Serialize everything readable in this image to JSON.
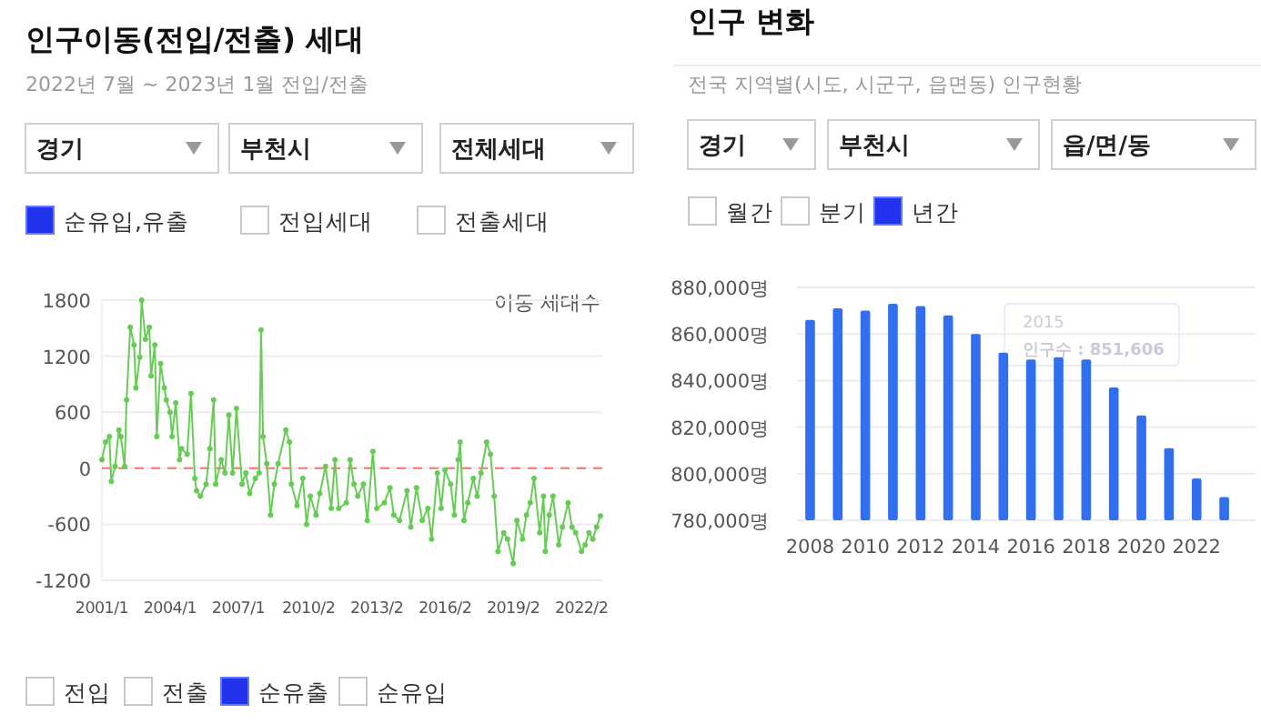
{
  "chart_data": [
    {
      "type": "line",
      "title": "인구이동(전입/전출) 세대",
      "subtitle": "2022년 7월 ~ 2023년 1월 전입/전출",
      "annotations": [
        "경기",
        "부천시",
        "전체세대",
        "순유입,유출",
        "전입세대",
        "전출세대",
        "이동 세대수",
        "전입",
        "전출",
        "순유출",
        "순유입"
      ],
      "x": [
        "2001-01",
        "2001-03",
        "2001-05",
        "2001-06",
        "2001-08",
        "2001-10",
        "2001-11",
        "2002-01",
        "2002-02",
        "2002-04",
        "2002-06",
        "2002-07",
        "2002-09",
        "2002-10",
        "2002-12",
        "2003-02",
        "2003-03",
        "2003-05",
        "2003-06",
        "2003-08",
        "2003-10",
        "2003-11",
        "2004-01",
        "2004-02",
        "2004-04",
        "2004-06",
        "2004-07",
        "2004-10",
        "2004-12",
        "2005-02",
        "2005-03",
        "2005-05",
        "2005-08",
        "2005-10",
        "2005-12",
        "2006-01",
        "2006-04",
        "2006-06",
        "2006-08",
        "2006-10",
        "2006-12",
        "2007-03",
        "2007-05",
        "2007-07",
        "2007-10",
        "2007-12",
        "2008-01",
        "2008-02",
        "2008-04",
        "2008-06",
        "2008-08",
        "2008-10",
        "2009-02",
        "2009-04",
        "2009-05",
        "2009-08",
        "2009-11",
        "2010-01",
        "2010-03",
        "2010-06",
        "2010-08",
        "2010-11",
        "2011-02",
        "2011-04",
        "2011-06",
        "2011-10",
        "2011-12",
        "2012-02",
        "2012-04",
        "2012-07",
        "2012-09",
        "2012-12",
        "2013-02",
        "2013-06",
        "2013-09",
        "2013-11",
        "2014-02",
        "2014-06",
        "2014-08",
        "2014-11",
        "2015-02",
        "2015-05",
        "2015-07",
        "2015-10",
        "2015-12",
        "2016-02",
        "2016-05",
        "2016-07",
        "2016-09",
        "2016-10",
        "2016-12",
        "2017-02",
        "2017-05",
        "2017-07",
        "2017-09",
        "2017-12",
        "2018-02",
        "2018-04",
        "2018-06",
        "2018-09",
        "2018-11",
        "2019-02",
        "2019-04",
        "2019-07",
        "2019-09",
        "2019-11",
        "2020-01",
        "2020-04",
        "2020-06",
        "2020-07",
        "2020-09",
        "2020-11",
        "2021-02",
        "2021-04",
        "2021-07",
        "2021-09",
        "2021-11",
        "2022-02",
        "2022-04",
        "2022-06",
        "2022-08",
        "2022-10",
        "2022-12"
      ],
      "values": [
        90,
        280,
        340,
        -140,
        20,
        410,
        340,
        20,
        730,
        1510,
        1320,
        860,
        1190,
        1800,
        1380,
        1510,
        990,
        1320,
        340,
        1120,
        860,
        730,
        600,
        340,
        700,
        90,
        210,
        150,
        800,
        -110,
        -240,
        -300,
        -170,
        210,
        730,
        -170,
        90,
        -50,
        570,
        -50,
        640,
        -170,
        -50,
        -270,
        -110,
        -50,
        1480,
        340,
        50,
        -500,
        -170,
        50,
        410,
        280,
        -170,
        -400,
        -110,
        -600,
        -300,
        -500,
        -270,
        20,
        -430,
        90,
        -430,
        -370,
        90,
        -170,
        -300,
        -170,
        -560,
        180,
        -430,
        -370,
        -210,
        -500,
        -560,
        -240,
        -630,
        -210,
        -560,
        -430,
        -760,
        -50,
        -430,
        -20,
        -170,
        -500,
        90,
        280,
        -560,
        -370,
        -110,
        -300,
        -50,
        280,
        150,
        -300,
        -890,
        -690,
        -760,
        -1020,
        -560,
        -760,
        -500,
        -370,
        -110,
        -690,
        -300,
        -890,
        -500,
        -300,
        -820,
        -630,
        -370,
        -630,
        -690,
        -890,
        -820,
        -690,
        -760,
        -630,
        -510
      ],
      "color": "#66cc55",
      "marker": "circle",
      "line_style": "solid",
      "xlim": [
        "2001-01",
        "2023-01"
      ],
      "xticks": [
        {
          "value": "2001-01",
          "label": "2001/1"
        },
        {
          "value": "2004-01",
          "label": "2004/1"
        },
        {
          "value": "2007-01",
          "label": "2007/1"
        },
        {
          "value": "2010-02",
          "label": "2010/2"
        },
        {
          "value": "2013-02",
          "label": "2013/2"
        },
        {
          "value": "2016-02",
          "label": "2016/2"
        },
        {
          "value": "2019-02",
          "label": "2019/2"
        },
        {
          "value": "2022-02",
          "label": "2022/2"
        }
      ],
      "ylim": [
        -1200,
        1800
      ],
      "yticks": [
        -1200,
        -600,
        0,
        600,
        1200,
        1800
      ],
      "grid": "y",
      "ref_lines": [
        {
          "axis": "y",
          "value": 0,
          "color": "#ff7070",
          "line_style": "dashed"
        }
      ]
    },
    {
      "type": "bar",
      "title": "인구 변화",
      "subtitle": "전국 지역별(시도, 시군구, 읍면동) 인구현황",
      "annotations": [
        "경기",
        "부천시",
        "읍/면/동",
        "월간",
        "분기",
        "년간",
        "2015",
        "인구수 : 851,606"
      ],
      "categories": [
        "2008",
        null,
        "2010",
        null,
        "2012",
        null,
        "2014",
        null,
        "2016",
        null,
        "2018",
        null,
        "2020",
        null,
        "2022",
        null
      ],
      "values": [
        866000,
        871000,
        870000,
        873000,
        872000,
        868000,
        860000,
        852000,
        849000,
        850000,
        849000,
        837000,
        825000,
        811000,
        798000,
        790000
      ],
      "color": "#2f6ff0",
      "ylim": [
        780000,
        880000
      ],
      "yticks": [
        {
          "value": 780000,
          "label": "780,000명"
        },
        {
          "value": 800000,
          "label": "800,000명"
        },
        {
          "value": 820000,
          "label": "820,000명"
        },
        {
          "value": 840000,
          "label": "840,000명"
        },
        {
          "value": 860000,
          "label": "860,000명"
        },
        {
          "value": 880000,
          "label": "880,000명"
        }
      ],
      "grid": "y"
    }
  ]
}
